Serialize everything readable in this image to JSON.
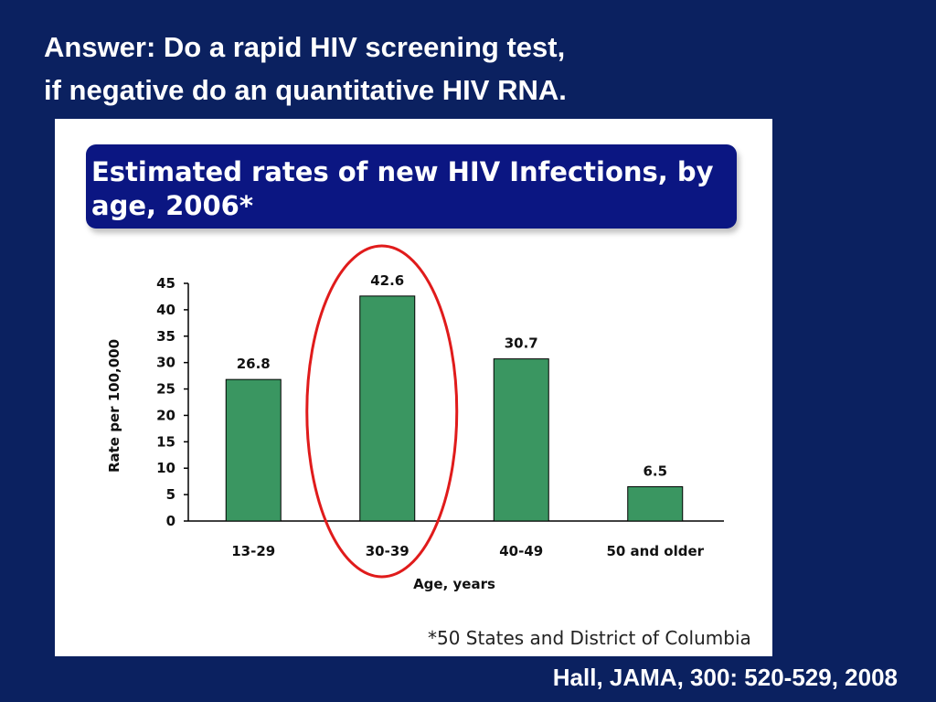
{
  "slide": {
    "title_line1": "Answer: Do a rapid HIV screening test,",
    "title_line2": "if negative do an quantitative HIV RNA.",
    "citation": "Hall, JAMA, 300: 520-529, 2008",
    "footnote": "*50 States and District of Columbia"
  },
  "chart_data": {
    "type": "bar",
    "title": "Estimated rates of new HIV Infections, by age, 2006*",
    "categories": [
      "13-29",
      "30-39",
      "40-49",
      "50 and older"
    ],
    "values": [
      26.8,
      42.6,
      30.7,
      6.5
    ],
    "data_labels": [
      "26.8",
      "42.6",
      "30.7",
      "6.5"
    ],
    "xlabel": "Age, years",
    "ylabel": "Rate per 100,000",
    "ylim": [
      0,
      45
    ],
    "yticks": [
      0,
      5,
      10,
      15,
      20,
      25,
      30,
      35,
      40,
      45
    ],
    "grid": false,
    "bar_color": "#3a9661",
    "highlight": {
      "category": "30-39",
      "shape": "ellipse",
      "color": "#e01b1b"
    }
  }
}
